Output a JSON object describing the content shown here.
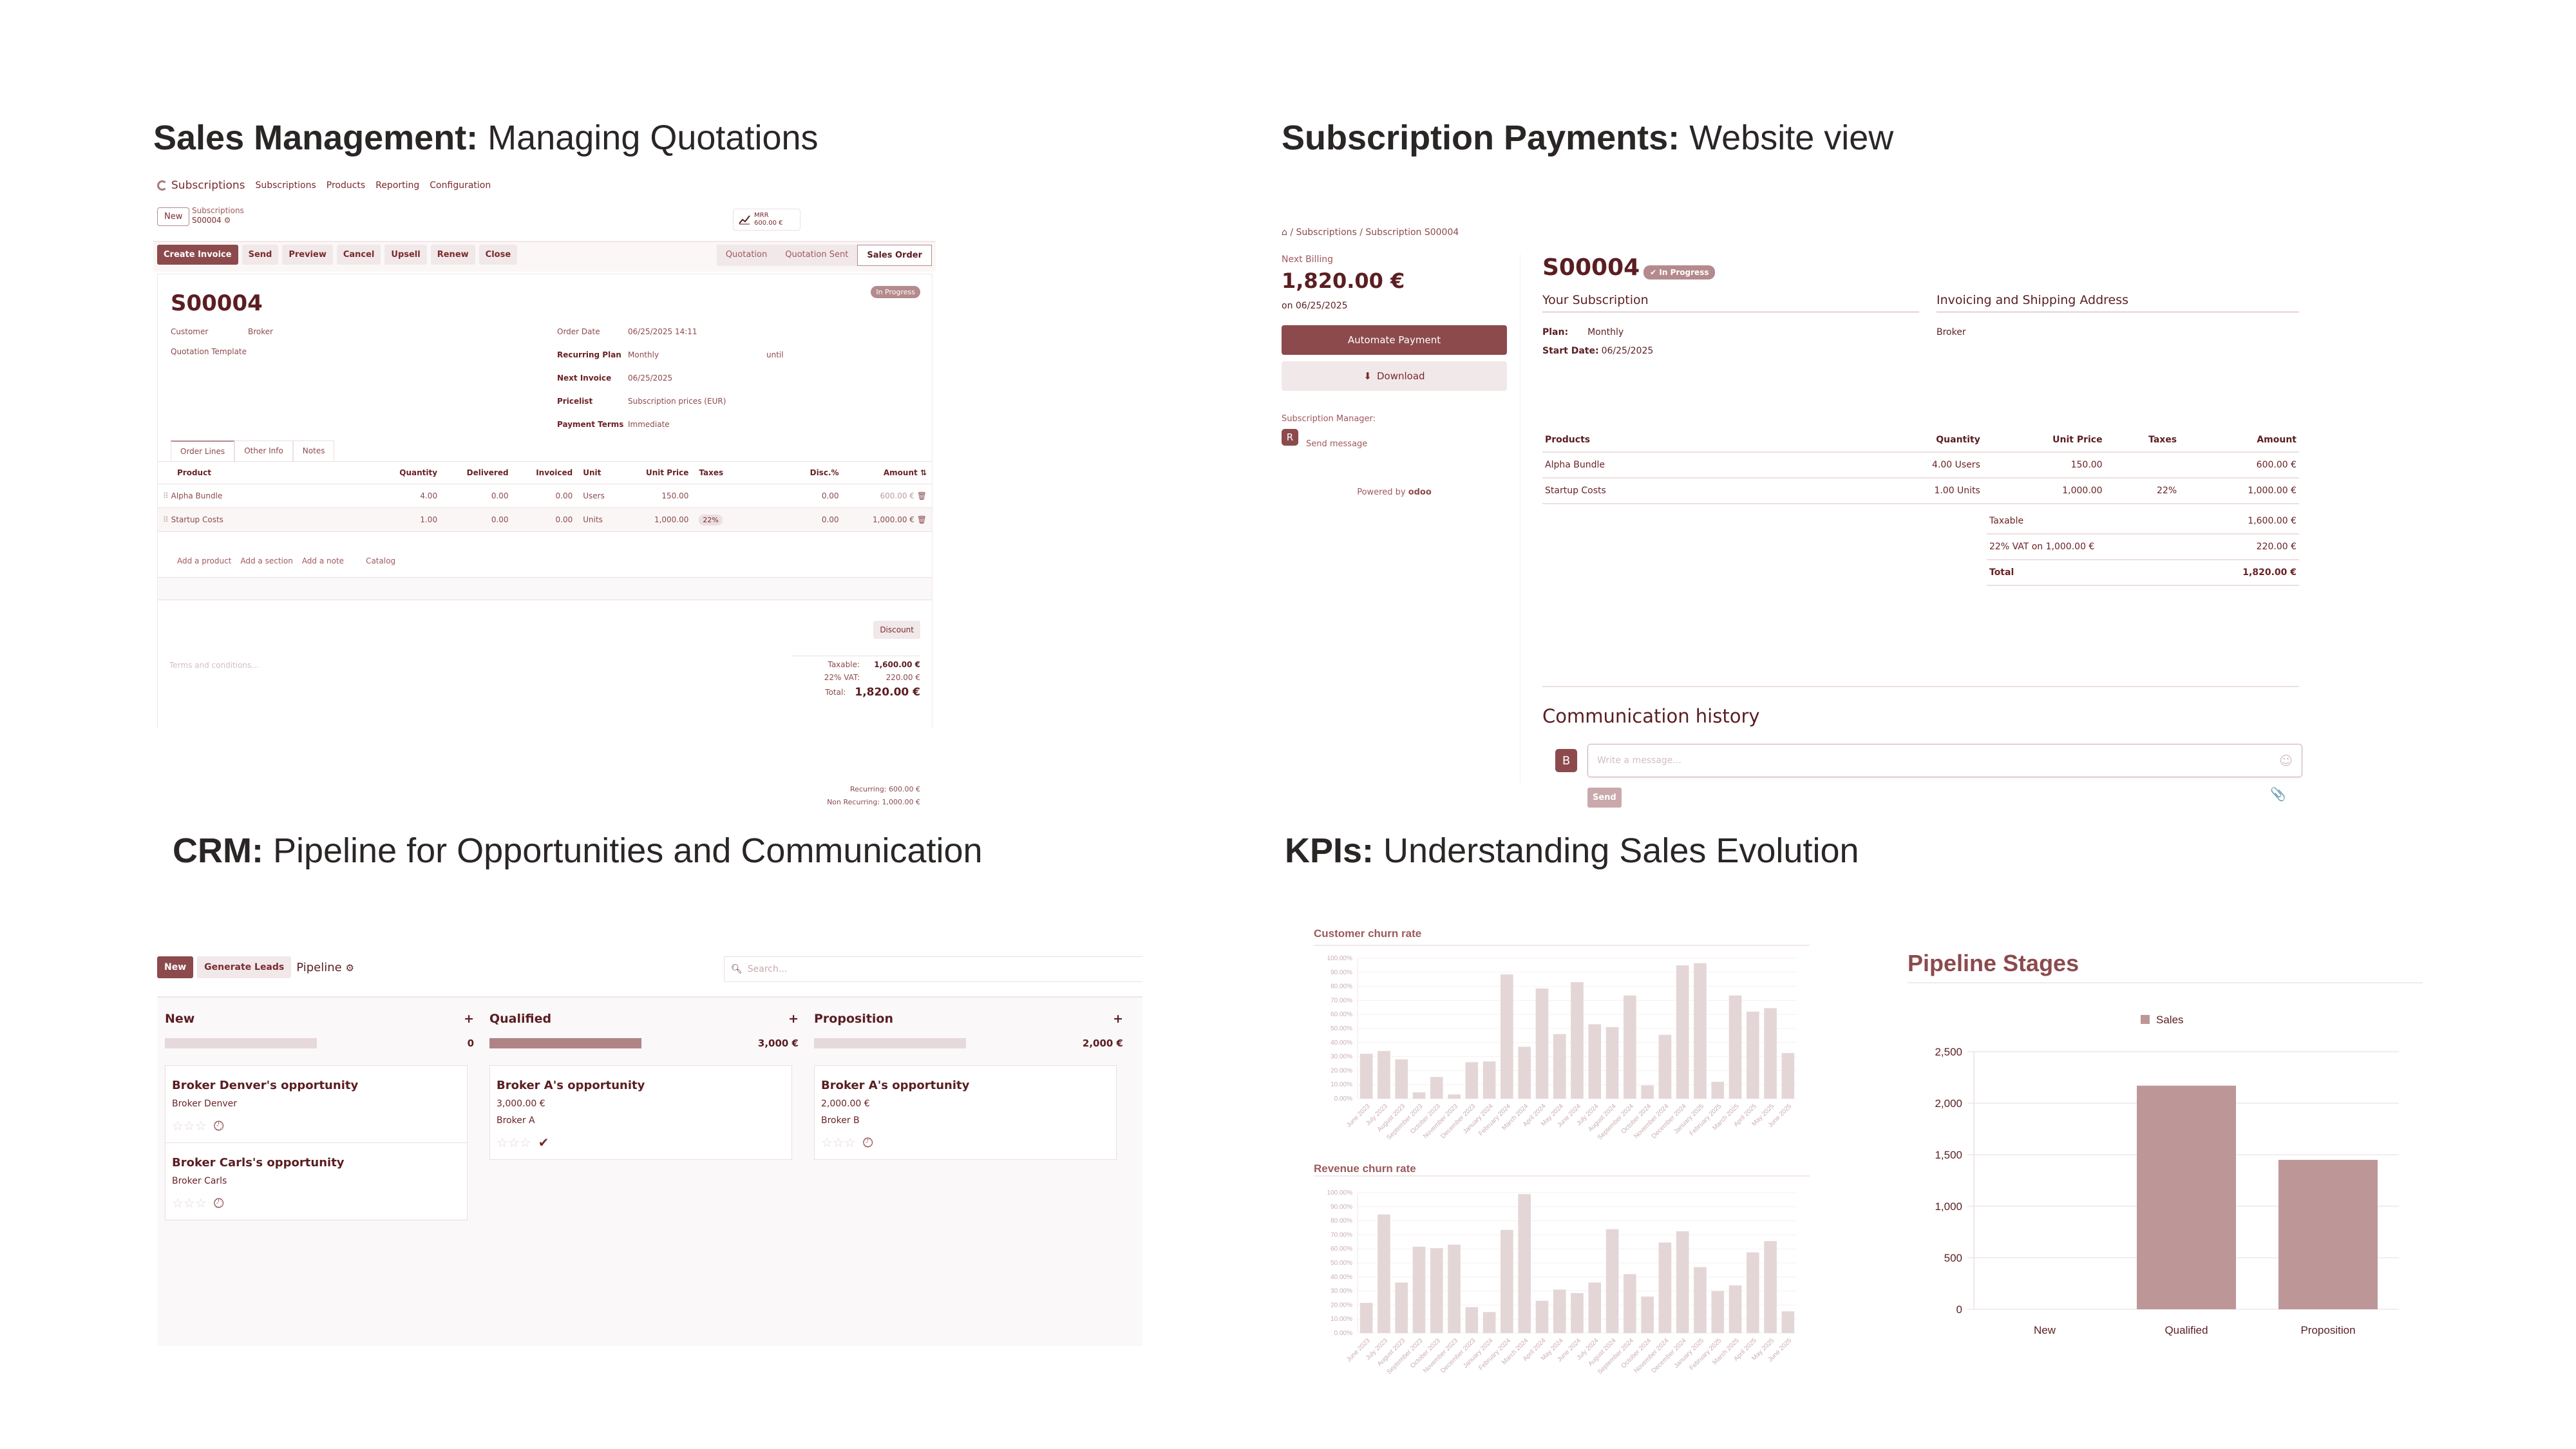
{
  "sections": {
    "sales": {
      "bold": "Sales Management:",
      "rest": " Managing Quotations"
    },
    "website": {
      "bold": "Subscription Payments:",
      "rest": " Website view"
    },
    "crm": {
      "bold": "CRM:",
      "rest": " Pipeline for Opportunities and Communication"
    },
    "kpis": {
      "bold": "KPIs:",
      "rest": " Understanding Sales Evolution"
    }
  },
  "colors": {
    "primary": "#8c4a4d",
    "bar_light": "#e4d6d7",
    "bar_mid": "#bd9798",
    "text_dark": "#5a1e22"
  },
  "sales_panel": {
    "app_name": "Subscriptions",
    "menu": [
      "Subscriptions",
      "Products",
      "Reporting",
      "Configuration"
    ],
    "new_button": "New",
    "breadcrumb_parent": "Subscriptions",
    "breadcrumb_current": "S00004",
    "mrr_label": "MRR",
    "mrr_value": "600.00 €",
    "actions": [
      "Create Invoice",
      "Send",
      "Preview",
      "Cancel",
      "Upsell",
      "Renew",
      "Close"
    ],
    "stages": [
      "Quotation",
      "Quotation Sent",
      "Sales Order"
    ],
    "active_stage": "Sales Order",
    "record_name": "S00004",
    "status_badge": "In Progress",
    "fields": {
      "customer_label": "Customer",
      "customer_value": "Broker",
      "template_label": "Quotation Template",
      "order_date_label": "Order Date",
      "order_date_value": "06/25/2025 14:11",
      "recurring_label": "Recurring Plan",
      "recurring_value": "Monthly",
      "until_label": "until",
      "next_invoice_label": "Next Invoice",
      "next_invoice_value": "06/25/2025",
      "pricelist_label": "Pricelist",
      "pricelist_value": "Subscription prices (EUR)",
      "payment_terms_label": "Payment Terms",
      "payment_terms_value": "Immediate"
    },
    "tabs": [
      "Order Lines",
      "Other Info",
      "Notes"
    ],
    "columns": [
      "Product",
      "Quantity",
      "Delivered",
      "Invoiced",
      "Unit",
      "Unit Price",
      "Taxes",
      "Disc.%",
      "Amount"
    ],
    "lines": [
      {
        "product": "Alpha Bundle",
        "quantity": "4.00",
        "delivered": "0.00",
        "invoiced": "0.00",
        "unit": "Users",
        "unit_price": "150.00",
        "taxes": "",
        "disc": "0.00",
        "amount": "600.00 €"
      },
      {
        "product": "Startup Costs",
        "quantity": "1.00",
        "delivered": "0.00",
        "invoiced": "0.00",
        "unit": "Units",
        "unit_price": "1,000.00",
        "taxes": "22%",
        "disc": "0.00",
        "amount": "1,000.00 €"
      }
    ],
    "add_links": [
      "Add a product",
      "Add a section",
      "Add a note",
      "Catalog"
    ],
    "discount_button": "Discount",
    "terms_placeholder": "Terms and conditions...",
    "totals": {
      "taxable_label": "Taxable:",
      "taxable_value": "1,600.00 €",
      "vat_label": "22% VAT:",
      "vat_value": "220.00 €",
      "total_label": "Total:",
      "total_value": "1,820.00 €"
    },
    "recurring_line": "Recurring: 600.00 €",
    "non_recurring_line": "Non Recurring: 1,000.00 €"
  },
  "website_panel": {
    "breadcrumb": [
      "Subscriptions",
      "Subscription S00004"
    ],
    "next_billing_label": "Next Billing",
    "next_billing_amount": "1,820.00 €",
    "next_billing_date": "on 06/25/2025",
    "automate_button": "Automate Payment",
    "download_button": "Download",
    "manager_label": "Subscription Manager:",
    "manager_initial": "R",
    "send_message": "Send message",
    "powered_by": "Powered by",
    "powered_brand": "odoo",
    "record_name": "S00004",
    "status_badge": "✔ In Progress",
    "your_subscription_heading": "Your Subscription",
    "address_heading": "Invoicing and Shipping Address",
    "plan_label": "Plan:",
    "plan_value": "Monthly",
    "start_label": "Start Date:",
    "start_value": "06/25/2025",
    "address_value": "Broker",
    "columns": [
      "Products",
      "Quantity",
      "Unit Price",
      "Taxes",
      "Amount"
    ],
    "lines": [
      {
        "product": "Alpha Bundle",
        "quantity": "4.00 Users",
        "unit_price": "150.00",
        "taxes": "",
        "amount": "600.00 €"
      },
      {
        "product": "Startup Costs",
        "quantity": "1.00 Units",
        "unit_price": "1,000.00",
        "taxes": "22%",
        "amount": "1,000.00 €"
      }
    ],
    "totals": [
      {
        "label": "Taxable",
        "value": "1,600.00 €"
      },
      {
        "label": "22% VAT on 1,000.00 €",
        "value": "220.00 €"
      },
      {
        "label": "Total",
        "value": "1,820.00 €"
      }
    ],
    "comm_heading": "Communication history",
    "author_initial": "B",
    "message_placeholder": "Write a message...",
    "send_button": "Send"
  },
  "crm_panel": {
    "new_button": "New",
    "generate_button": "Generate Leads",
    "view_title": "Pipeline",
    "search_placeholder": "Search...",
    "columns": [
      {
        "name": "New",
        "total": "0",
        "fill": false,
        "cards": [
          {
            "title": "Broker Denver's opportunity",
            "lines": [
              "Broker Denver"
            ],
            "activity": "clock"
          },
          {
            "title": "Broker Carls's opportunity",
            "lines": [
              "Broker Carls"
            ],
            "activity": "clock"
          }
        ]
      },
      {
        "name": "Qualified",
        "total": "3,000 €",
        "fill": true,
        "cards": [
          {
            "title": "Broker A's opportunity",
            "lines": [
              "3,000.00 €",
              "Broker A"
            ],
            "activity": "check"
          }
        ]
      },
      {
        "name": "Proposition",
        "total": "2,000 €",
        "fill": false,
        "cards": [
          {
            "title": "Broker A's opportunity",
            "lines": [
              "2,000.00 €",
              "Broker B"
            ],
            "activity": "clock"
          }
        ]
      }
    ]
  },
  "chart_data": [
    {
      "type": "bar",
      "title": "Customer churn rate",
      "xlabel": "",
      "ylabel": "",
      "ylim": [
        0,
        100
      ],
      "yticks": [
        "0.00%",
        "10.00%",
        "20.00%",
        "30.00%",
        "40.00%",
        "50.00%",
        "60.00%",
        "70.00%",
        "80.00%",
        "90.00%",
        "100.00%"
      ],
      "grid": true,
      "categories": [
        "June 2023",
        "July 2023",
        "August 2023",
        "September 2023",
        "October 2023",
        "November 2023",
        "December 2023",
        "January 2024",
        "February 2024",
        "March 2024",
        "April 2024",
        "May 2024",
        "June 2024",
        "July 2024",
        "August 2024",
        "September 2024",
        "October 2024",
        "November 2024",
        "December 2024",
        "January 2025",
        "February 2025",
        "March 2025",
        "April 2025",
        "May 2025",
        "June 2025"
      ],
      "values": [
        32,
        34,
        28,
        4.5,
        15.5,
        3,
        26,
        26.5,
        88.5,
        37,
        78.5,
        46,
        83,
        53,
        51,
        73.5,
        9.5,
        45.5,
        95,
        96.5,
        12,
        73.5,
        62,
        64.5,
        32.5
      ]
    },
    {
      "type": "bar",
      "title": "Revenue churn rate",
      "xlabel": "",
      "ylabel": "",
      "ylim": [
        0,
        100
      ],
      "yticks": [
        "0.00%",
        "10.00%",
        "20.00%",
        "30.00%",
        "40.00%",
        "50.00%",
        "60.00%",
        "70.00%",
        "80.00%",
        "90.00%",
        "100.00%"
      ],
      "grid": true,
      "categories": [
        "June 2023",
        "July 2023",
        "August 2023",
        "September 2023",
        "October 2023",
        "November 2023",
        "December 2023",
        "January 2024",
        "February 2024",
        "March 2024",
        "April 2024",
        "May 2024",
        "June 2024",
        "July 2024",
        "August 2024",
        "September 2024",
        "October 2024",
        "November 2024",
        "December 2024",
        "January 2025",
        "February 2025",
        "March 2025",
        "April 2025",
        "May 2025",
        "June 2025"
      ],
      "values": [
        21.5,
        84.5,
        36,
        61.5,
        60.5,
        63,
        18.5,
        15,
        73.5,
        99,
        23,
        31,
        28.5,
        36,
        74,
        42,
        26,
        64.5,
        72.5,
        47,
        30,
        34,
        57.5,
        65.5,
        15.5
      ]
    },
    {
      "type": "bar",
      "title": "Pipeline Stages",
      "xlabel": "",
      "ylabel": "",
      "ylim": [
        0,
        2500
      ],
      "yticks": [
        "0",
        "500",
        "1,000",
        "1,500",
        "2,000",
        "2,500"
      ],
      "grid": true,
      "legend": {
        "position": "top",
        "entries": [
          "Sales"
        ]
      },
      "categories": [
        "New",
        "Qualified",
        "Proposition"
      ],
      "series": [
        {
          "name": "Sales",
          "values": [
            0,
            2170,
            1450
          ]
        }
      ]
    }
  ]
}
